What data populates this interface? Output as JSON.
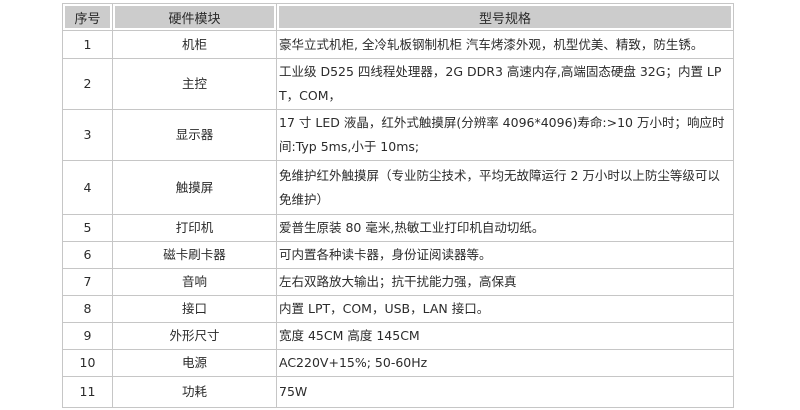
{
  "table": {
    "headers": [
      "序号",
      "硬件模块",
      "型号规格"
    ],
    "rows": [
      {
        "no": "1",
        "module": "机柜",
        "spec": "豪华立式机柜, 全冷轧板钢制机柜 汽车烤漆外观，机型优美、精致，防生锈。"
      },
      {
        "no": "2",
        "module": "主控",
        "spec": "工业级 D525 四线程处理器，2G DDR3 高速内存,高端固态硬盘 32G；内置 LPT，COM，"
      },
      {
        "no": "3",
        "module": "显示器",
        "spec": "17 寸 LED 液晶，红外式触摸屏(分辨率 4096*4096)寿命:>10 万小时；响应时间:Typ 5ms,小于 10ms;"
      },
      {
        "no": "4",
        "module": "触摸屏",
        "spec": "免维护红外触摸屏（专业防尘技术，平均无故障运行 2 万小时以上防尘等级可以免维护）"
      },
      {
        "no": "5",
        "module": "打印机",
        "spec": "爱普生原装 80 毫米,热敏工业打印机自动切纸。"
      },
      {
        "no": "6",
        "module": "磁卡刷卡器",
        "spec": "可内置各种读卡器，身份证阅读器等。"
      },
      {
        "no": "7",
        "module": "音响",
        "spec": "左右双路放大输出；抗干扰能力强，高保真"
      },
      {
        "no": "8",
        "module": "接口",
        "spec": "内置 LPT，COM，USB，LAN 接口。"
      },
      {
        "no": "9",
        "module": "外形尺寸",
        "spec": "宽度 45CM 高度 145CM"
      },
      {
        "no": "10",
        "module": "电源",
        "spec": "AC220V+15%; 50-60Hz"
      },
      {
        "no": "11",
        "module": "功耗",
        "spec": "75W"
      }
    ],
    "colors": {
      "header_bg": "#cccccc",
      "border": "#c6c6c6",
      "text": "#2b2b2b"
    }
  }
}
